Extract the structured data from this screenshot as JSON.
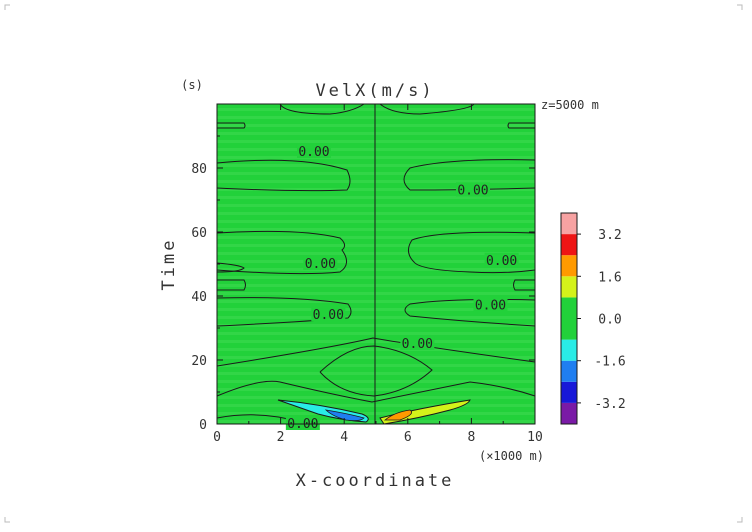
{
  "chart_data": {
    "type": "contour",
    "title": "VelX(m/s)",
    "annotation": "z=5000 m",
    "xlabel": "X-coordinate",
    "x_unit": "(×1000 m)",
    "ylabel": "Time",
    "y_unit": "(s)",
    "xlim": [
      0,
      10
    ],
    "ylim": [
      0,
      100
    ],
    "x_ticks": [
      "0",
      "2",
      "4",
      "6",
      "8",
      "10"
    ],
    "y_ticks": [
      "0",
      "20",
      "40",
      "60",
      "80"
    ],
    "contour_labels": [
      {
        "text": "0.00",
        "x": 3.05,
        "y": 85
      },
      {
        "text": "0.00",
        "x": 8.05,
        "y": 73
      },
      {
        "text": "0.00",
        "x": 3.25,
        "y": 50
      },
      {
        "text": "0.00",
        "x": 8.95,
        "y": 51
      },
      {
        "text": "0.00",
        "x": 3.5,
        "y": 34
      },
      {
        "text": "0.00",
        "x": 8.6,
        "y": 37
      },
      {
        "text": "0.00",
        "x": 6.3,
        "y": 25
      },
      {
        "text": "0.00",
        "x": 2.7,
        "y": 0
      }
    ],
    "colorbar": {
      "tick_labels": [
        "3.2",
        "1.6",
        "0.0",
        "-1.6",
        "-3.2"
      ],
      "levels": [
        -4.0,
        -3.2,
        -2.4,
        -1.6,
        -0.8,
        0.8,
        1.6,
        2.4,
        3.2,
        4.0
      ],
      "colors": [
        "#7a1aa6",
        "#1818d8",
        "#1f7ef0",
        "#29ece6",
        "#22d13a",
        "#d4f21a",
        "#ff9a00",
        "#ee1414",
        "#f7a2a2"
      ]
    }
  }
}
